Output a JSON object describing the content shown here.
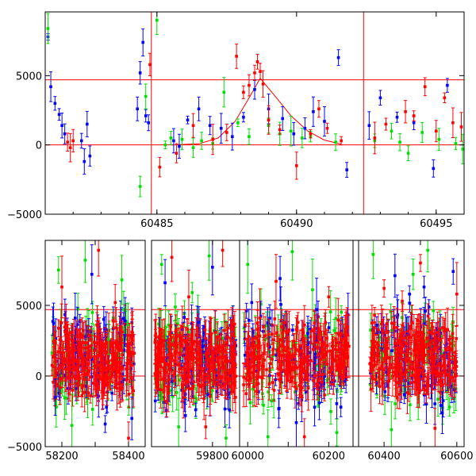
{
  "colors": {
    "series_blue": "#0000ff",
    "series_green": "#00e000",
    "series_red": "#ff0000",
    "reference_lines": "#ff0000",
    "frame": "#000000"
  },
  "chart_data": [
    {
      "type": "scatter",
      "panel": "top",
      "title": "",
      "xlabel": "",
      "ylabel": "",
      "xlim": [
        60481,
        60496
      ],
      "ylim": [
        -5000,
        9600
      ],
      "x_ticks": [
        60485,
        60490,
        60495
      ],
      "x_tick_labels": [
        "60485",
        "60490",
        "60495"
      ],
      "y_ticks": [
        -5000,
        0,
        5000
      ],
      "y_tick_labels": [
        "−5000",
        "0",
        "5000"
      ],
      "grid": false,
      "legend": "none",
      "error_bars": true,
      "horizontal_lines": [
        0,
        4700
      ],
      "vertical_lines": [
        60484.8,
        60492.4
      ],
      "model_curve": {
        "color": "red",
        "x": [
          60485.5,
          60486.5,
          60487.2,
          60487.8,
          60488.3,
          60488.7,
          60489.2,
          60489.8,
          60490.4,
          60491.0,
          60491.6
        ],
        "y": [
          0,
          80,
          500,
          1700,
          3400,
          4800,
          3600,
          2100,
          1000,
          350,
          60
        ]
      },
      "series": [
        {
          "color": "blue",
          "x": [
            60481.1,
            60481.2,
            60481.35,
            60481.5,
            60481.6,
            60481.7,
            60482.3,
            60482.4,
            60482.5,
            60482.6,
            60484.3,
            60484.4,
            60484.5,
            60484.6,
            60484.7,
            60485.6,
            60485.8,
            60486.1,
            60486.5,
            60486.9,
            60487.3,
            60487.7,
            60488.1,
            60488.5,
            60489.0,
            60489.5,
            60489.9,
            60490.3,
            60490.6,
            60491.0,
            60491.5,
            60491.8,
            60492.6,
            60493.0,
            60493.6,
            60494.2,
            60494.9,
            60495.4
          ],
          "y": [
            7800,
            4200,
            3000,
            2200,
            1400,
            800,
            300,
            -1200,
            1500,
            -800,
            2600,
            5200,
            7400,
            2100,
            1600,
            300,
            -100,
            1800,
            2600,
            1400,
            1200,
            600,
            2000,
            4000,
            2600,
            1900,
            800,
            1200,
            2400,
            1700,
            6300,
            -1800,
            1400,
            3400,
            2000,
            1600,
            -1700,
            4300
          ]
        },
        {
          "color": "green",
          "x": [
            60481.1,
            60484.4,
            60484.6,
            60485.0,
            60485.3,
            60485.5,
            60485.9,
            60486.3,
            60486.6,
            60487.0,
            60487.4,
            60487.9,
            60488.3,
            60489.0,
            60489.4,
            60489.8,
            60490.2,
            60490.5,
            60491.4,
            60492.8,
            60493.4,
            60493.7,
            60494.0,
            60494.5,
            60495.1,
            60495.7,
            60495.95
          ],
          "y": [
            8400,
            -3000,
            3500,
            9000,
            0,
            500,
            400,
            -200,
            300,
            100,
            3800,
            1600,
            600,
            1400,
            800,
            1000,
            500,
            600,
            200,
            300,
            1000,
            200,
            -600,
            900,
            400,
            100,
            -300
          ]
        },
        {
          "color": "red",
          "x": [
            60481.8,
            60481.9,
            60482.0,
            60484.75,
            60485.1,
            60485.7,
            60486.3,
            60487.0,
            60487.5,
            60487.85,
            60488.1,
            60488.3,
            60488.5,
            60488.6,
            60488.7,
            60488.8,
            60489.0,
            60489.4,
            60490.0,
            60490.5,
            60490.8,
            60491.1,
            60491.6,
            60492.8,
            60493.2,
            60493.9,
            60494.2,
            60494.6,
            60495.0,
            60495.3,
            60495.6,
            60495.9
          ],
          "y": [
            200,
            -200,
            300,
            5800,
            -1600,
            -600,
            1400,
            400,
            900,
            6400,
            3800,
            4300,
            5200,
            6000,
            5300,
            4400,
            1800,
            1100,
            -1500,
            800,
            2600,
            1200,
            300,
            500,
            1500,
            2400,
            2100,
            4200,
            1000,
            3400,
            1600,
            1300
          ]
        }
      ]
    },
    {
      "type": "scatter",
      "panel": "bottom",
      "title": "",
      "xlabel": "",
      "ylabel": "",
      "x_segments": [
        [
          58150,
          58450
        ],
        [
          59620,
          59880
        ],
        [
          59980,
          60260
        ],
        [
          60330,
          60620
        ]
      ],
      "ylim": [
        -5000,
        9600
      ],
      "x_ticks": [
        58200,
        58300,
        58400,
        59800,
        60000,
        60100,
        60200,
        60400,
        60500,
        60600
      ],
      "x_tick_labels": [
        "58200",
        "",
        "58400",
        "59800",
        "60000",
        "",
        "60200",
        "60400",
        "",
        "60600"
      ],
      "y_ticks": [
        -5000,
        0,
        5000
      ],
      "y_tick_labels": [
        "−5000",
        "0",
        "5000"
      ],
      "grid": false,
      "legend": "none",
      "error_bars": true,
      "horizontal_lines": [
        0,
        4700
      ],
      "dense_bands": [
        {
          "x": [
            58170,
            58420
          ],
          "y": [
            -1500,
            3800
          ]
        },
        {
          "x": [
            59630,
            59870
          ],
          "y": [
            -1800,
            4000
          ]
        },
        {
          "x": [
            59990,
            60250
          ],
          "y": [
            -1600,
            4200
          ]
        },
        {
          "x": [
            60360,
            60600
          ],
          "y": [
            -1500,
            4400
          ]
        }
      ],
      "series": [
        {
          "color": "blue",
          "x": [
            58180,
            58240,
            58290,
            58330,
            58390,
            58410,
            59660,
            59720,
            59760,
            59800,
            59850,
            60010,
            60080,
            60120,
            60170,
            60230,
            60380,
            60430,
            60470,
            60510,
            60560,
            60590
          ],
          "y": [
            -1500,
            4100,
            7200,
            -3400,
            3900,
            -3000,
            6600,
            -2800,
            3800,
            7700,
            -2400,
            5200,
            6900,
            -3300,
            4700,
            -2200,
            3600,
            7100,
            5800,
            6300,
            -2600,
            7400
          ]
        },
        {
          "color": "green",
          "x": [
            58190,
            58230,
            58270,
            58340,
            58380,
            59650,
            59700,
            59740,
            59790,
            59840,
            60000,
            60050,
            60110,
            60160,
            60220,
            60370,
            60420,
            60480,
            60520,
            60580
          ],
          "y": [
            7500,
            -3500,
            8200,
            2600,
            6800,
            7900,
            -3600,
            5900,
            8500,
            -4400,
            7900,
            -4300,
            8800,
            6100,
            -4000,
            8600,
            -3800,
            7200,
            8900,
            -2200
          ]
        },
        {
          "color": "red",
          "x": [
            58200,
            58260,
            58310,
            58360,
            58400,
            59680,
            59730,
            59780,
            59830,
            60030,
            60070,
            60140,
            60200,
            60250,
            60400,
            60450,
            60500,
            60540,
            60600
          ],
          "y": [
            6300,
            -1400,
            8900,
            5200,
            -4400,
            8400,
            5600,
            -3600,
            8900,
            4100,
            6700,
            -4300,
            5600,
            2100,
            6200,
            5300,
            8000,
            -3700,
            5800
          ]
        }
      ]
    }
  ]
}
